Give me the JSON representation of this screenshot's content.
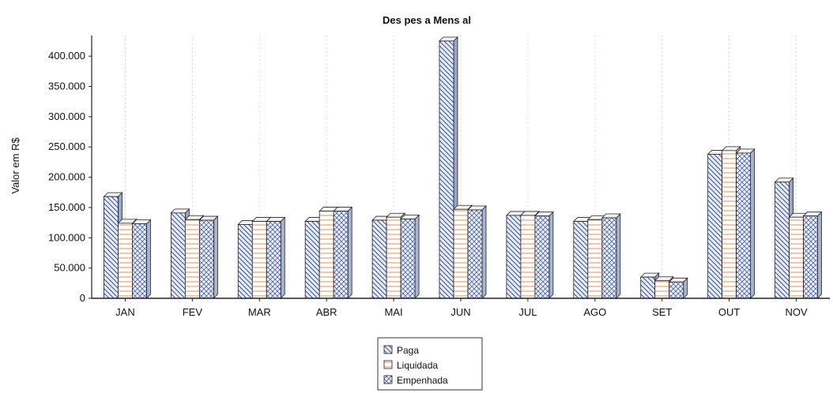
{
  "chart_data": {
    "type": "bar",
    "title": "Des pes a Mens al",
    "ylabel": "Valor em R$",
    "xlabel": "",
    "categories": [
      "JAN",
      "FEV",
      "MAR",
      "ABR",
      "MAI",
      "JUN",
      "JUL",
      "AGO",
      "SET",
      "OUT",
      "NOV"
    ],
    "series": [
      {
        "name": "Paga",
        "values": [
          168000,
          141000,
          122000,
          127000,
          129000,
          425000,
          137000,
          127000,
          35000,
          238000,
          192000
        ],
        "color": "#cfd8ee",
        "pattern": "diag-back"
      },
      {
        "name": "Liquidada",
        "values": [
          124000,
          130000,
          127000,
          144000,
          134000,
          147000,
          137000,
          130000,
          29000,
          244000,
          134000
        ],
        "color": "#ffffff",
        "pattern": "horiz-orange"
      },
      {
        "name": "Empenhada",
        "values": [
          123000,
          129000,
          127000,
          144000,
          131000,
          146000,
          136000,
          133000,
          27000,
          240000,
          136000
        ],
        "color": "#dfe6f4",
        "pattern": "crosshatch"
      }
    ],
    "ylim": [
      0,
      425000
    ],
    "yticks": [
      "0",
      "50.000",
      "100.000",
      "150.000",
      "200.000",
      "250.000",
      "300.000",
      "350.000",
      "400.000"
    ],
    "ytick_values": [
      0,
      50000,
      100000,
      150000,
      200000,
      250000,
      300000,
      350000,
      400000
    ],
    "grid": "vertical-dashed",
    "legend": {
      "position": "bottom-center",
      "entries": [
        "Paga",
        "Liquidada",
        "Empenhada"
      ]
    }
  }
}
